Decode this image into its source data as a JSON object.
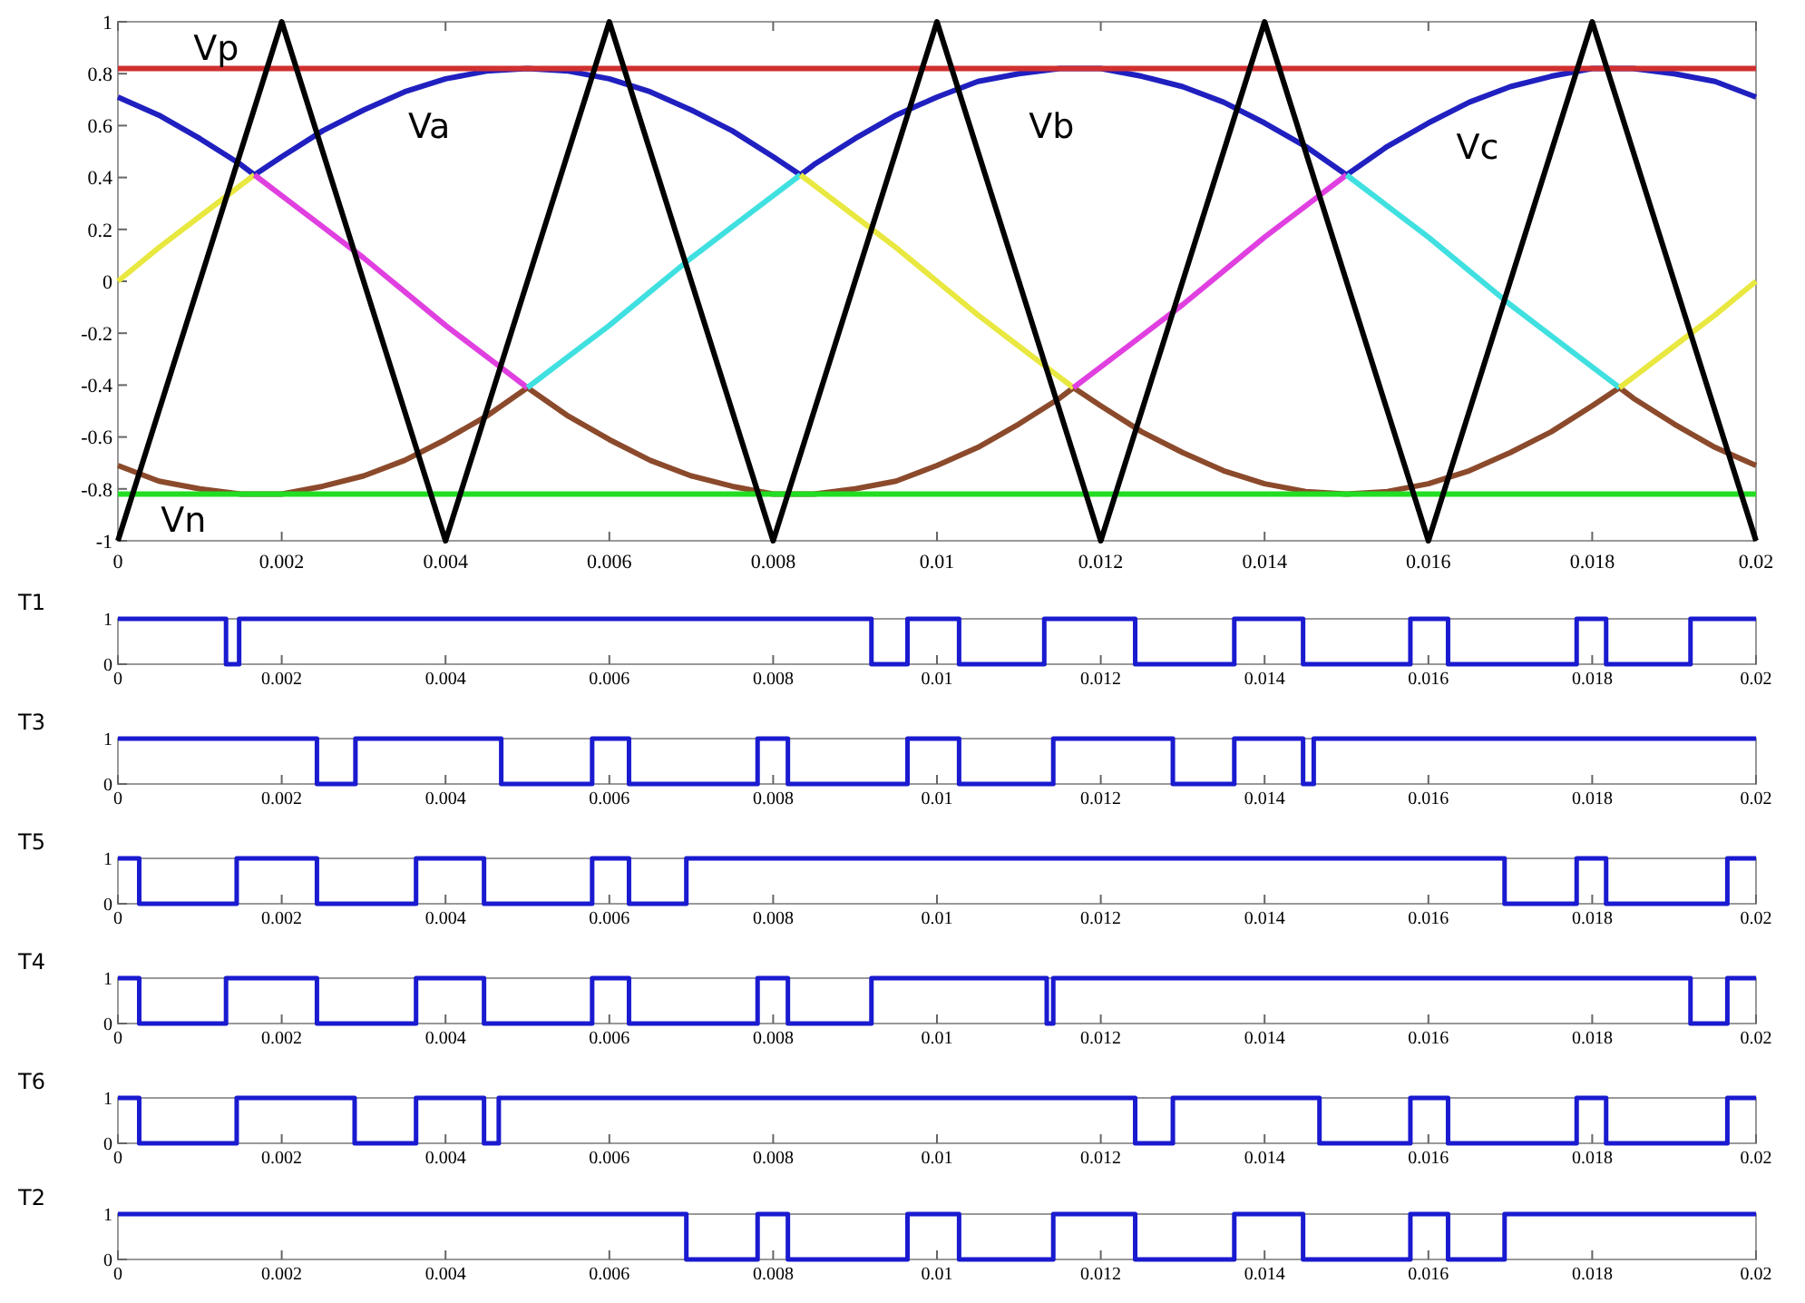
{
  "chart_data": [
    {
      "type": "line",
      "xlim": [
        0,
        0.02
      ],
      "ylim": [
        -1,
        1
      ],
      "xticks": [
        0,
        0.002,
        0.004,
        0.006,
        0.008,
        0.01,
        0.012,
        0.014,
        0.016,
        0.018,
        0.02
      ],
      "yticks": [
        -1,
        -0.8,
        -0.6,
        -0.4,
        -0.2,
        0,
        0.2,
        0.4,
        0.6,
        0.8,
        1
      ],
      "line_style": "solid",
      "marker": "none",
      "series": [
        {
          "color": "#2020c0",
          "x": [
            0,
            0.0005,
            0.001,
            0.0015,
            0.001667,
            0.002,
            0.0025,
            0.003,
            0.0035,
            0.004,
            0.0045,
            0.005,
            0.0055,
            0.006,
            0.0065,
            0.007,
            0.0075,
            0.008,
            0.008333,
            0.0085,
            0.009,
            0.0095,
            0.01,
            0.0105,
            0.011,
            0.0115,
            0.012,
            0.0125,
            0.013,
            0.0135,
            0.014,
            0.0145,
            0.015,
            0.0155,
            0.016,
            0.0165,
            0.017,
            0.0175,
            0.018,
            0.0185,
            0.019,
            0.0195,
            0.02
          ],
          "values": [
            0.71,
            0.64,
            0.55,
            0.45,
            0.41,
            0.48,
            0.58,
            0.66,
            0.73,
            0.78,
            0.81,
            0.82,
            0.81,
            0.78,
            0.73,
            0.66,
            0.58,
            0.48,
            0.41,
            0.45,
            0.55,
            0.64,
            0.71,
            0.77,
            0.8,
            0.82,
            0.82,
            0.79,
            0.75,
            0.69,
            0.61,
            0.52,
            0.41,
            0.52,
            0.61,
            0.69,
            0.75,
            0.79,
            0.82,
            0.82,
            0.8,
            0.77,
            0.71
          ]
        },
        {
          "color": "#8b4a2b",
          "x": [
            0,
            0.0005,
            0.001,
            0.0015,
            0.002,
            0.0025,
            0.003,
            0.0035,
            0.004,
            0.0045,
            0.005,
            0.0055,
            0.006,
            0.0065,
            0.007,
            0.0075,
            0.008,
            0.0085,
            0.009,
            0.0095,
            0.01,
            0.0105,
            0.011,
            0.0115,
            0.011667,
            0.012,
            0.0125,
            0.013,
            0.0135,
            0.014,
            0.0145,
            0.015,
            0.0155,
            0.016,
            0.0165,
            0.017,
            0.0175,
            0.018,
            0.018333,
            0.0185,
            0.019,
            0.0195,
            0.02
          ],
          "values": [
            -0.71,
            -0.77,
            -0.8,
            -0.82,
            -0.82,
            -0.79,
            -0.75,
            -0.69,
            -0.61,
            -0.52,
            -0.41,
            -0.52,
            -0.61,
            -0.69,
            -0.75,
            -0.79,
            -0.82,
            -0.82,
            -0.8,
            -0.77,
            -0.71,
            -0.64,
            -0.55,
            -0.45,
            -0.41,
            -0.48,
            -0.58,
            -0.66,
            -0.73,
            -0.78,
            -0.81,
            -0.82,
            -0.81,
            -0.78,
            -0.73,
            -0.66,
            -0.58,
            -0.48,
            -0.41,
            -0.45,
            -0.55,
            -0.64,
            -0.71
          ]
        },
        {
          "color": "#e8e840",
          "x": [
            0,
            0.0005,
            0.001,
            0.0015,
            0.001667
          ],
          "values": [
            0,
            0.13,
            0.25,
            0.37,
            0.41
          ]
        },
        {
          "color": "#e040e0",
          "x": [
            0.001667,
            0.002,
            0.0025,
            0.003,
            0.0035,
            0.004,
            0.0045,
            0.005
          ],
          "values": [
            0.41,
            0.33,
            0.21,
            0.09,
            -0.04,
            -0.17,
            -0.29,
            -0.41
          ]
        },
        {
          "color": "#40e0e0",
          "x": [
            0.005,
            0.0055,
            0.006,
            0.0065,
            0.007,
            0.0075,
            0.008,
            0.008333
          ],
          "values": [
            -0.41,
            -0.29,
            -0.17,
            -0.04,
            0.09,
            0.21,
            0.33,
            0.41
          ]
        },
        {
          "color": "#e8e840",
          "x": [
            0.008333,
            0.0085,
            0.009,
            0.0095,
            0.01,
            0.0105,
            0.011,
            0.0115,
            0.011667
          ],
          "values": [
            0.41,
            0.37,
            0.25,
            0.13,
            0,
            -0.13,
            -0.25,
            -0.37,
            -0.41
          ]
        },
        {
          "color": "#e040e0",
          "x": [
            0.011667,
            0.012,
            0.0125,
            0.013,
            0.0135,
            0.014,
            0.0145,
            0.015
          ],
          "values": [
            -0.41,
            -0.33,
            -0.21,
            -0.09,
            0.04,
            0.17,
            0.29,
            0.41
          ]
        },
        {
          "color": "#40e0e0",
          "x": [
            0.015,
            0.0155,
            0.016,
            0.0165,
            0.017,
            0.0175,
            0.018,
            0.018333
          ],
          "values": [
            0.41,
            0.29,
            0.17,
            0.04,
            -0.09,
            -0.21,
            -0.33,
            -0.41
          ]
        },
        {
          "color": "#e8e840",
          "x": [
            0.018333,
            0.0185,
            0.019,
            0.0195,
            0.02
          ],
          "values": [
            -0.41,
            -0.37,
            -0.25,
            -0.13,
            0
          ]
        },
        {
          "color": "#d03030",
          "x": [
            0,
            0.02
          ],
          "values": [
            0.82,
            0.82
          ]
        },
        {
          "color": "#22dd22",
          "x": [
            0,
            0.02
          ],
          "values": [
            -0.82,
            -0.82
          ]
        },
        {
          "color": "#000000",
          "x": [
            0,
            0.002,
            0.004,
            0.006,
            0.008,
            0.01,
            0.012,
            0.014,
            0.016,
            0.018,
            0.02
          ],
          "values": [
            -1,
            1,
            -1,
            1,
            -1,
            1,
            -1,
            1,
            -1,
            1,
            -1
          ]
        }
      ],
      "annotations": [
        "Vp",
        "Va",
        "Vb",
        "Vc",
        "Vn"
      ]
    },
    {
      "type": "step",
      "title": "T1",
      "xlim": [
        0,
        0.02
      ],
      "ylim": [
        0,
        1
      ],
      "xticks": [
        0,
        0.002,
        0.004,
        0.006,
        0.008,
        0.01,
        0.012,
        0.014,
        0.016,
        0.018,
        0.02
      ],
      "yticks": [
        0,
        1
      ],
      "series": [
        {
          "color": "#1a1ad0",
          "x": [
            0,
            0.00132,
            0.00148,
            0.0092,
            0.00964,
            0.01027,
            0.01131,
            0.01242,
            0.01363,
            0.01447,
            0.01578,
            0.01624,
            0.01781,
            0.01817,
            0.0192,
            0.02
          ],
          "values": [
            1,
            0,
            1,
            0,
            1,
            0,
            1,
            0,
            1,
            0,
            1,
            0,
            1,
            0,
            1,
            1
          ]
        }
      ]
    },
    {
      "type": "step",
      "title": "T3",
      "xlim": [
        0,
        0.02
      ],
      "ylim": [
        0,
        1
      ],
      "xticks": [
        0,
        0.002,
        0.004,
        0.006,
        0.008,
        0.01,
        0.012,
        0.014,
        0.016,
        0.018,
        0.02
      ],
      "yticks": [
        0,
        1
      ],
      "series": [
        {
          "color": "#1a1ad0",
          "x": [
            0,
            0.00243,
            0.0029,
            0.00468,
            0.00579,
            0.00624,
            0.00781,
            0.00818,
            0.00964,
            0.01027,
            0.01142,
            0.01288,
            0.01363,
            0.01447,
            0.0146,
            0.02
          ],
          "values": [
            1,
            0,
            1,
            0,
            1,
            0,
            1,
            0,
            1,
            0,
            1,
            0,
            1,
            0,
            1,
            1
          ]
        }
      ]
    },
    {
      "type": "step",
      "title": "T5",
      "xlim": [
        0,
        0.02
      ],
      "ylim": [
        0,
        1
      ],
      "xticks": [
        0,
        0.002,
        0.004,
        0.006,
        0.008,
        0.01,
        0.012,
        0.014,
        0.016,
        0.018,
        0.02
      ],
      "yticks": [
        0,
        1
      ],
      "series": [
        {
          "color": "#1a1ad0",
          "x": [
            0,
            0.00026,
            0.00145,
            0.00243,
            0.00364,
            0.00447,
            0.00579,
            0.00624,
            0.00694,
            0.01693,
            0.01781,
            0.01817,
            0.01965,
            0.02
          ],
          "values": [
            1,
            0,
            1,
            0,
            1,
            0,
            1,
            0,
            1,
            0,
            1,
            0,
            1,
            1
          ]
        }
      ]
    },
    {
      "type": "step",
      "title": "T4",
      "xlim": [
        0,
        0.02
      ],
      "ylim": [
        0,
        1
      ],
      "xticks": [
        0,
        0.002,
        0.004,
        0.006,
        0.008,
        0.01,
        0.012,
        0.014,
        0.016,
        0.018,
        0.02
      ],
      "yticks": [
        0,
        1
      ],
      "series": [
        {
          "color": "#1a1ad0",
          "x": [
            0,
            0.00026,
            0.00132,
            0.00243,
            0.00364,
            0.00447,
            0.00579,
            0.00624,
            0.00781,
            0.00818,
            0.0092,
            0.01134,
            0.01142,
            0.0192,
            0.01965,
            0.02
          ],
          "values": [
            1,
            0,
            1,
            0,
            1,
            0,
            1,
            0,
            1,
            0,
            1,
            0,
            1,
            0,
            1,
            1
          ]
        }
      ]
    },
    {
      "type": "step",
      "title": "T6",
      "xlim": [
        0,
        0.02
      ],
      "ylim": [
        0,
        1
      ],
      "xticks": [
        0,
        0.002,
        0.004,
        0.006,
        0.008,
        0.01,
        0.012,
        0.014,
        0.016,
        0.018,
        0.02
      ],
      "yticks": [
        0,
        1
      ],
      "series": [
        {
          "color": "#1a1ad0",
          "x": [
            0,
            0.00026,
            0.00145,
            0.00289,
            0.00364,
            0.00447,
            0.00465,
            0.01242,
            0.01288,
            0.01467,
            0.01578,
            0.01624,
            0.01781,
            0.01817,
            0.01965,
            0.02
          ],
          "values": [
            1,
            0,
            1,
            0,
            1,
            0,
            1,
            0,
            1,
            0,
            1,
            0,
            1,
            0,
            1,
            1
          ]
        }
      ]
    },
    {
      "type": "step",
      "title": "T2",
      "xlim": [
        0,
        0.02
      ],
      "ylim": [
        0,
        1
      ],
      "xticks": [
        0,
        0.002,
        0.004,
        0.006,
        0.008,
        0.01,
        0.012,
        0.014,
        0.016,
        0.018,
        0.02
      ],
      "yticks": [
        0,
        1
      ],
      "series": [
        {
          "color": "#1a1ad0",
          "x": [
            0,
            0.00694,
            0.00781,
            0.00818,
            0.00964,
            0.01027,
            0.01142,
            0.01242,
            0.01363,
            0.01447,
            0.01578,
            0.01624,
            0.01693,
            0.02
          ],
          "values": [
            1,
            0,
            1,
            0,
            1,
            0,
            1,
            0,
            1,
            0,
            1,
            0,
            1,
            1
          ]
        }
      ]
    }
  ]
}
